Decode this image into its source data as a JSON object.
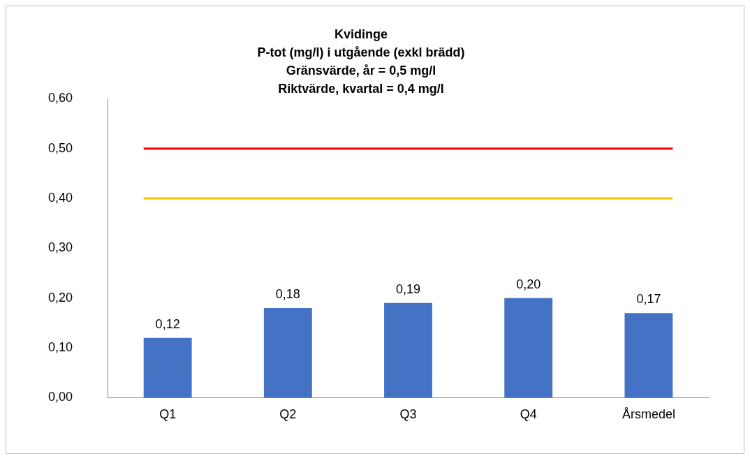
{
  "chart_data": {
    "type": "bar",
    "title": "Kvidinge\nP-tot (mg/l) i utgående (exkl brädd)\nGränsvärde, år = 0,5 mg/l\nRiktvärde, kvartal = 0,4 mg/l",
    "categories": [
      "Q1",
      "Q2",
      "Q3",
      "Q4",
      "Årsmedel"
    ],
    "values": [
      0.12,
      0.18,
      0.19,
      0.2,
      0.17
    ],
    "color": "#4472c4",
    "ylim": [
      0,
      0.6
    ],
    "yticks": [
      {
        "value": 0,
        "label": "0,00"
      },
      {
        "value": 0.1,
        "label": "0,10"
      },
      {
        "value": 0.2,
        "label": "0,20"
      },
      {
        "value": 0.3,
        "label": "0,30"
      },
      {
        "value": 0.4,
        "label": "0,40"
      },
      {
        "value": 0.5,
        "label": "0,50"
      },
      {
        "value": 0.6,
        "label": "0,60"
      }
    ],
    "ref_lines": [
      {
        "axis": "y",
        "value": 0.5,
        "color": "#ff0000"
      },
      {
        "axis": "y",
        "value": 0.4,
        "color": "#ffc000"
      }
    ],
    "value_labels": [
      "0,12",
      "0,18",
      "0,19",
      "0,20",
      "0,17"
    ],
    "grid": false,
    "legend": false
  }
}
